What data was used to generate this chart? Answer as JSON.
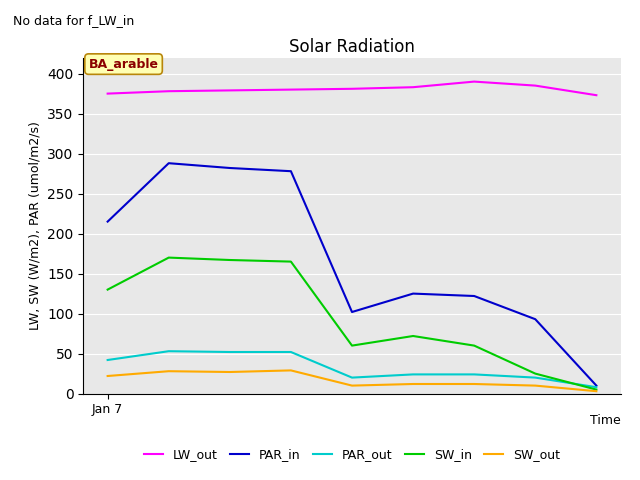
{
  "title": "Solar Radiation",
  "subtitle": "No data for f_LW_in",
  "xlabel": "Time",
  "ylabel": "LW, SW (W/m2), PAR (umol/m2/s)",
  "x_label_start": "Jan 7",
  "num_points": 9,
  "series": {
    "LW_out": {
      "color": "#ff00ff",
      "values": [
        375,
        378,
        379,
        380,
        381,
        383,
        390,
        385,
        373
      ]
    },
    "PAR_in": {
      "color": "#0000cc",
      "values": [
        215,
        288,
        282,
        278,
        102,
        125,
        122,
        93,
        10
      ]
    },
    "PAR_out": {
      "color": "#00cccc",
      "values": [
        42,
        53,
        52,
        52,
        20,
        24,
        24,
        20,
        8
      ]
    },
    "SW_in": {
      "color": "#00cc00",
      "values": [
        130,
        170,
        167,
        165,
        60,
        72,
        60,
        25,
        5
      ]
    },
    "SW_out": {
      "color": "#ffaa00",
      "values": [
        22,
        28,
        27,
        29,
        10,
        12,
        12,
        10,
        3
      ]
    }
  },
  "ylim": [
    0,
    420
  ],
  "yticks": [
    0,
    50,
    100,
    150,
    200,
    250,
    300,
    350,
    400
  ],
  "background_color": "#e8e8e8",
  "legend_box_facecolor": "#ffffb3",
  "legend_box_edgecolor": "#b8860b",
  "legend_box_text": "BA_arable",
  "legend_box_text_color": "#8b0000"
}
